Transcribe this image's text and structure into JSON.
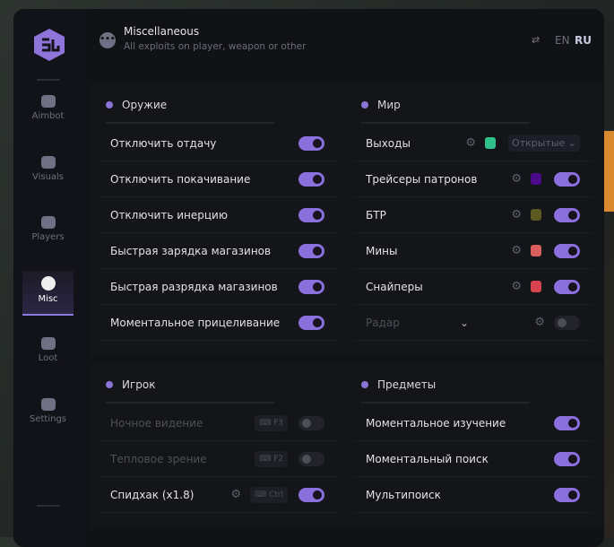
{
  "header": {
    "title": "Miscellaneous",
    "subtitle": "All exploits on player, weapon or other",
    "lang_en": "EN",
    "lang_ru": "RU"
  },
  "sidebar": {
    "items": [
      {
        "label": "Aimbot",
        "icon": "alien-icon"
      },
      {
        "label": "Visuals",
        "icon": "vr-headset-icon"
      },
      {
        "label": "Players",
        "icon": "users-icon"
      },
      {
        "label": "Misc",
        "icon": "dots-icon",
        "active": true
      },
      {
        "label": "Loot",
        "icon": "briefcase-icon"
      },
      {
        "label": "Settings",
        "icon": "list-icon"
      }
    ]
  },
  "weapon": {
    "title": "Оружие",
    "rows": [
      {
        "label": "Отключить отдачу",
        "on": true
      },
      {
        "label": "Отключить покачивание",
        "on": true
      },
      {
        "label": "Отключить инерцию",
        "on": true
      },
      {
        "label": "Быстрая зарядка магазинов",
        "on": true
      },
      {
        "label": "Быстрая разрядка магазинов",
        "on": true
      },
      {
        "label": "Моментальное прицеливание",
        "on": true
      }
    ]
  },
  "world": {
    "title": "Мир",
    "rows": [
      {
        "label": "Выходы",
        "color": "#2fc08c",
        "select": "Открытые"
      },
      {
        "label": "Трейсеры патронов",
        "color": "#4b0a8a",
        "on": true
      },
      {
        "label": "БТР",
        "color": "#5a5a22",
        "on": true
      },
      {
        "label": "Мины",
        "color": "#d95e5e",
        "on": true
      },
      {
        "label": "Снайперы",
        "color": "#d9434f",
        "on": true
      },
      {
        "label": "Радар",
        "on": false
      }
    ]
  },
  "player": {
    "title": "Игрок",
    "rows": [
      {
        "label": "Ночное видение",
        "key": "F3",
        "on": false
      },
      {
        "label": "Тепловое зрение",
        "key": "F2",
        "on": false
      },
      {
        "label": "Спидхак (x1.8)",
        "key": "Ctrl",
        "on": true
      }
    ]
  },
  "items": {
    "title": "Предметы",
    "rows": [
      {
        "label": "Моментальное изучение",
        "on": true
      },
      {
        "label": "Моментальный поиск",
        "on": true
      },
      {
        "label": "Мультипоиск",
        "on": true
      }
    ]
  },
  "colors": {
    "accent": "#8b6fdc"
  }
}
